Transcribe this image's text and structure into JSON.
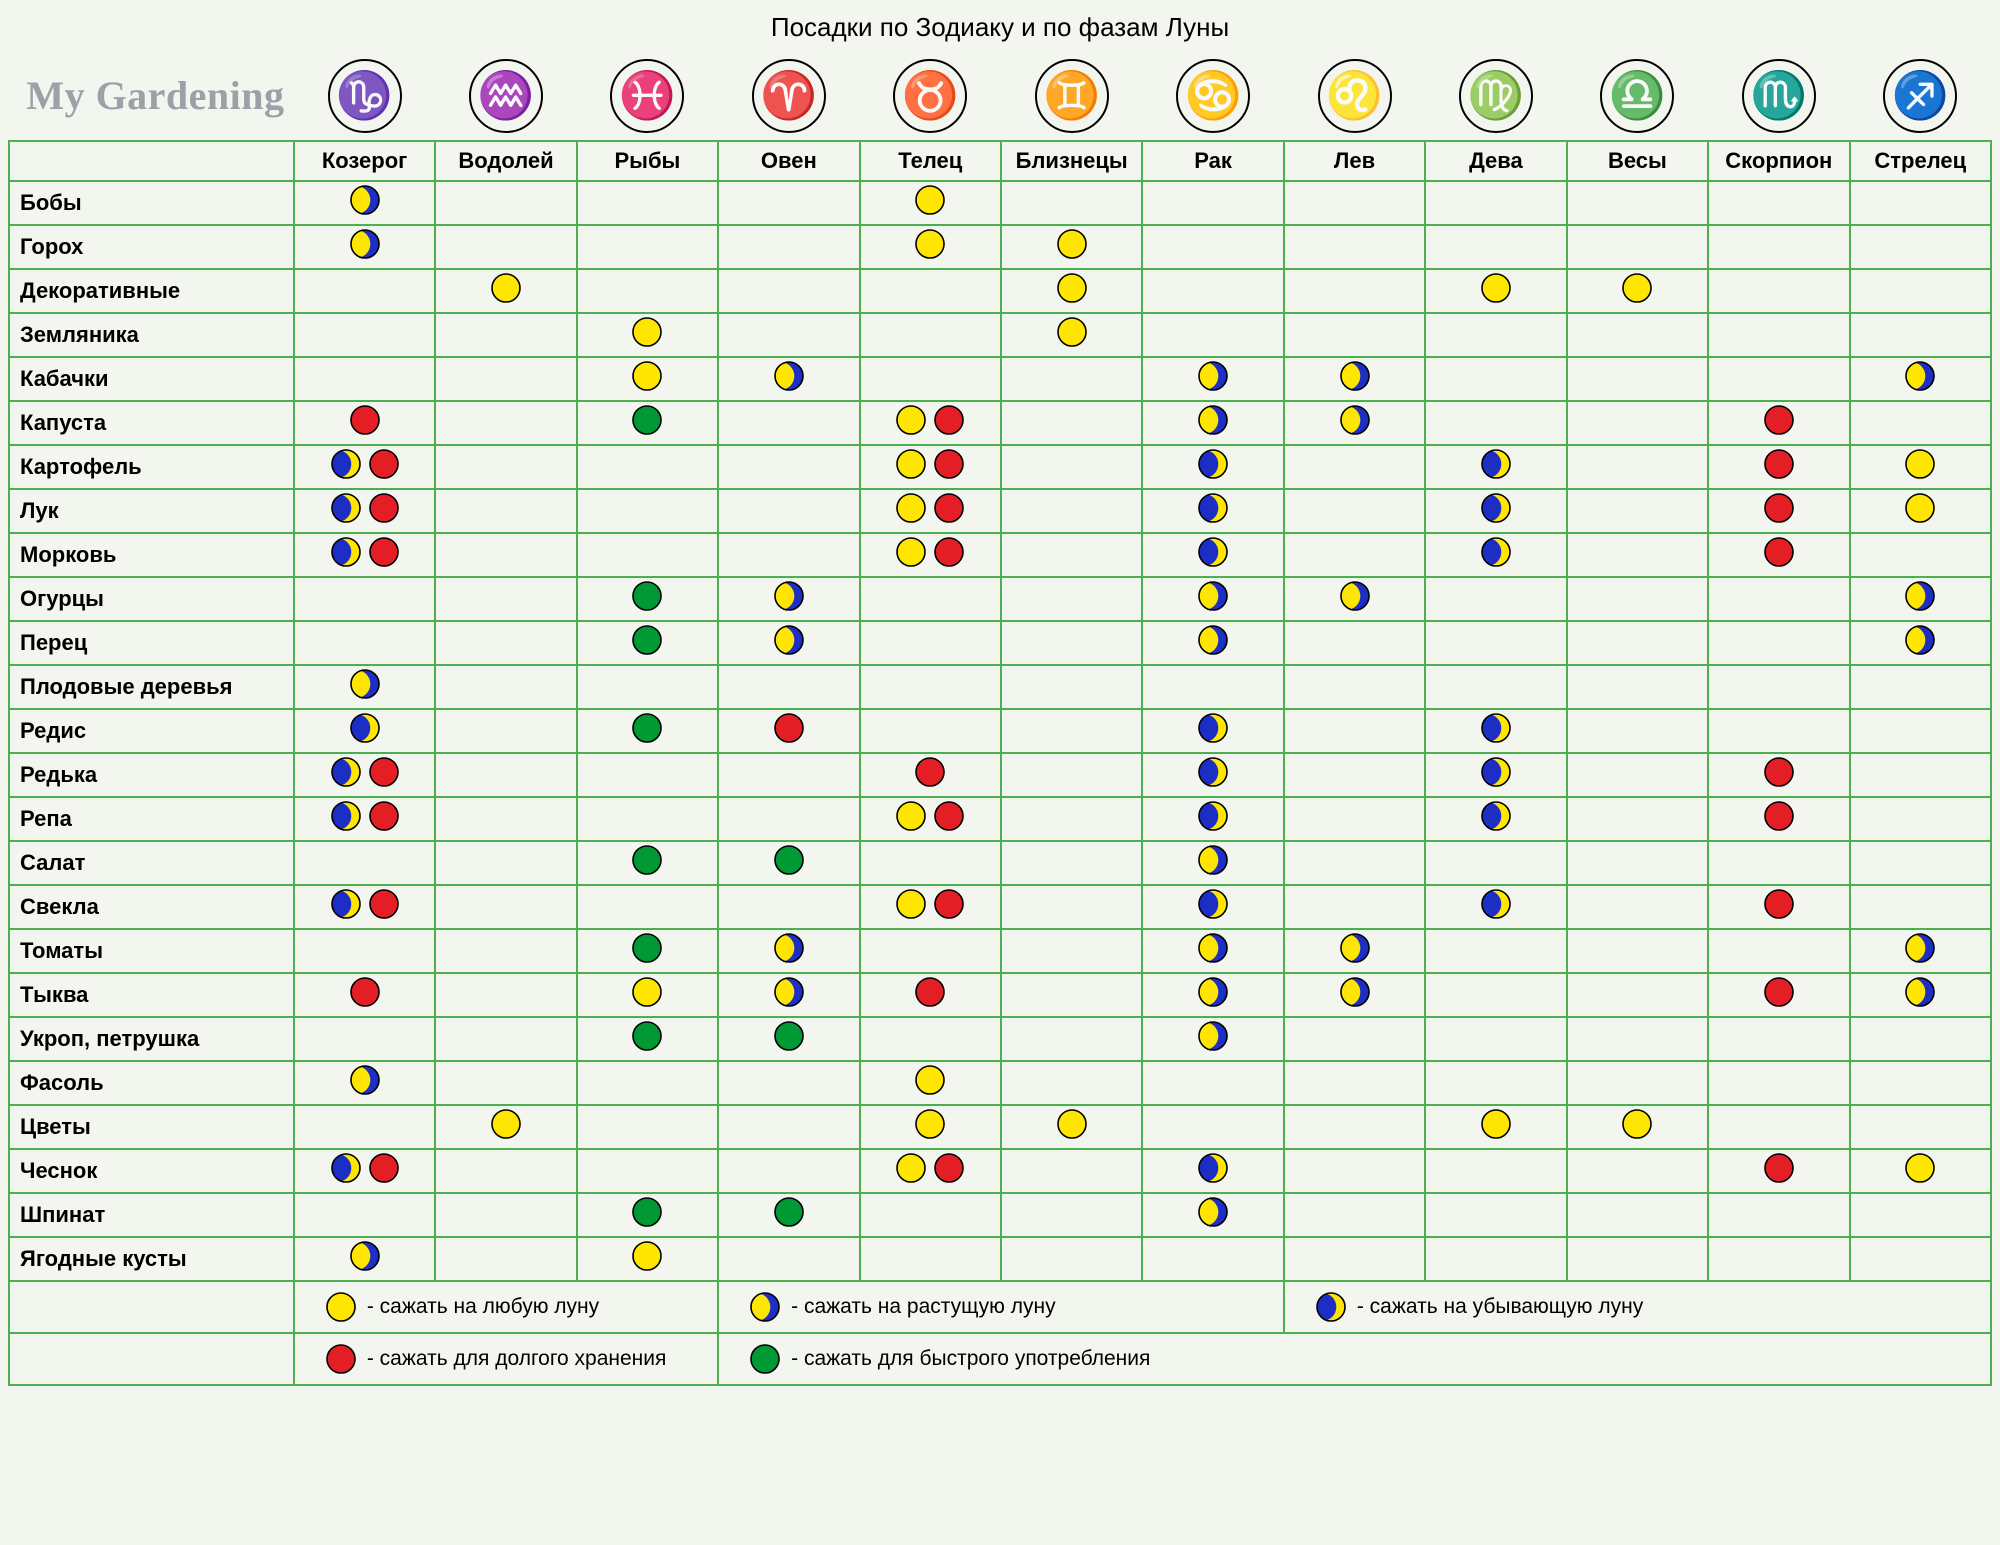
{
  "title": "Посадки по Зодиаку и по фазам Луны",
  "logo": "My Gardening",
  "colors": {
    "yellow": "#ffe600",
    "red": "#e31e24",
    "green": "#009933",
    "blue": "#1d2ec4",
    "stroke": "#000000",
    "border": "#4caf50",
    "bg": "#f2f6ee"
  },
  "dot_radius": 14,
  "zodiac": [
    {
      "key": "capricorn",
      "label": "Козерог",
      "glyph": "♑"
    },
    {
      "key": "aquarius",
      "label": "Водолей",
      "glyph": "♒"
    },
    {
      "key": "pisces",
      "label": "Рыбы",
      "glyph": "♓"
    },
    {
      "key": "aries",
      "label": "Овен",
      "glyph": "♈"
    },
    {
      "key": "taurus",
      "label": "Телец",
      "glyph": "♉"
    },
    {
      "key": "gemini",
      "label": "Близнецы",
      "glyph": "♊"
    },
    {
      "key": "cancer",
      "label": "Рак",
      "glyph": "♋"
    },
    {
      "key": "leo",
      "label": "Лев",
      "glyph": "♌"
    },
    {
      "key": "virgo",
      "label": "Дева",
      "glyph": "♍"
    },
    {
      "key": "libra",
      "label": "Весы",
      "glyph": "♎"
    },
    {
      "key": "scorpio",
      "label": "Скорпион",
      "glyph": "♏"
    },
    {
      "key": "sagittarius",
      "label": "Стрелец",
      "glyph": "♐"
    }
  ],
  "rows": [
    {
      "label": "Бобы",
      "cells": [
        [
          "wax"
        ],
        [],
        [],
        [],
        [
          "y"
        ],
        [],
        [],
        [],
        [],
        [],
        [],
        []
      ]
    },
    {
      "label": "Горох",
      "cells": [
        [
          "wax"
        ],
        [],
        [],
        [],
        [
          "y"
        ],
        [
          "y"
        ],
        [],
        [],
        [],
        [],
        [],
        []
      ]
    },
    {
      "label": "Декоративные",
      "cells": [
        [],
        [
          "y"
        ],
        [],
        [],
        [],
        [
          "y"
        ],
        [],
        [],
        [
          "y"
        ],
        [
          "y"
        ],
        [],
        []
      ]
    },
    {
      "label": "Земляника",
      "cells": [
        [],
        [],
        [
          "y"
        ],
        [],
        [],
        [
          "y"
        ],
        [],
        [],
        [],
        [],
        [],
        []
      ]
    },
    {
      "label": "Кабачки",
      "cells": [
        [],
        [],
        [
          "y"
        ],
        [
          "wax"
        ],
        [],
        [],
        [
          "wax"
        ],
        [
          "wax"
        ],
        [],
        [],
        [],
        [
          "wax"
        ]
      ]
    },
    {
      "label": "Капуста",
      "cells": [
        [
          "r"
        ],
        [],
        [
          "g"
        ],
        [],
        [
          "y",
          "r"
        ],
        [],
        [
          "wax"
        ],
        [
          "wax"
        ],
        [],
        [],
        [
          "r"
        ],
        []
      ]
    },
    {
      "label": "Картофель",
      "cells": [
        [
          "wan",
          "r"
        ],
        [],
        [],
        [],
        [
          "y",
          "r"
        ],
        [],
        [
          "wan"
        ],
        [],
        [
          "wan"
        ],
        [],
        [
          "r"
        ],
        [
          "y"
        ]
      ]
    },
    {
      "label": "Лук",
      "cells": [
        [
          "wan",
          "r"
        ],
        [],
        [],
        [],
        [
          "y",
          "r"
        ],
        [],
        [
          "wan"
        ],
        [],
        [
          "wan"
        ],
        [],
        [
          "r"
        ],
        [
          "y"
        ]
      ]
    },
    {
      "label": "Морковь",
      "cells": [
        [
          "wan",
          "r"
        ],
        [],
        [],
        [],
        [
          "y",
          "r"
        ],
        [],
        [
          "wan"
        ],
        [],
        [
          "wan"
        ],
        [],
        [
          "r"
        ],
        []
      ]
    },
    {
      "label": "Огурцы",
      "cells": [
        [],
        [],
        [
          "g"
        ],
        [
          "wax"
        ],
        [],
        [],
        [
          "wax"
        ],
        [
          "wax"
        ],
        [],
        [],
        [],
        [
          "wax"
        ]
      ]
    },
    {
      "label": "Перец",
      "cells": [
        [],
        [],
        [
          "g"
        ],
        [
          "wax"
        ],
        [],
        [],
        [
          "wax"
        ],
        [],
        [],
        [],
        [],
        [
          "wax"
        ]
      ]
    },
    {
      "label": "Плодовые деревья",
      "cells": [
        [
          "wax"
        ],
        [],
        [],
        [],
        [],
        [],
        [],
        [],
        [],
        [],
        [],
        []
      ]
    },
    {
      "label": "Редис",
      "cells": [
        [
          "wan"
        ],
        [],
        [
          "g"
        ],
        [
          "r"
        ],
        [],
        [],
        [
          "wan"
        ],
        [],
        [
          "wan"
        ],
        [],
        [],
        []
      ]
    },
    {
      "label": "Редька",
      "cells": [
        [
          "wan",
          "r"
        ],
        [],
        [],
        [],
        [
          "r"
        ],
        [],
        [
          "wan"
        ],
        [],
        [
          "wan"
        ],
        [],
        [
          "r"
        ],
        []
      ]
    },
    {
      "label": "Репа",
      "cells": [
        [
          "wan",
          "r"
        ],
        [],
        [],
        [],
        [
          "y",
          "r"
        ],
        [],
        [
          "wan"
        ],
        [],
        [
          "wan"
        ],
        [],
        [
          "r"
        ],
        []
      ]
    },
    {
      "label": "Салат",
      "cells": [
        [],
        [],
        [
          "g"
        ],
        [
          "g"
        ],
        [],
        [],
        [
          "wax"
        ],
        [],
        [],
        [],
        [],
        []
      ]
    },
    {
      "label": "Свекла",
      "cells": [
        [
          "wan",
          "r"
        ],
        [],
        [],
        [],
        [
          "y",
          "r"
        ],
        [],
        [
          "wan"
        ],
        [],
        [
          "wan"
        ],
        [],
        [
          "r"
        ],
        []
      ]
    },
    {
      "label": "Томаты",
      "cells": [
        [],
        [],
        [
          "g"
        ],
        [
          "wax"
        ],
        [],
        [],
        [
          "wax"
        ],
        [
          "wax"
        ],
        [],
        [],
        [],
        [
          "wax"
        ]
      ]
    },
    {
      "label": "Тыква",
      "cells": [
        [
          "r"
        ],
        [],
        [
          "y"
        ],
        [
          "wax"
        ],
        [
          "r"
        ],
        [],
        [
          "wax"
        ],
        [
          "wax"
        ],
        [],
        [],
        [
          "r"
        ],
        [
          "wax"
        ]
      ]
    },
    {
      "label": "Укроп, петрушка",
      "cells": [
        [],
        [],
        [
          "g"
        ],
        [
          "g"
        ],
        [],
        [],
        [
          "wax"
        ],
        [],
        [],
        [],
        [],
        []
      ]
    },
    {
      "label": "Фасоль",
      "cells": [
        [
          "wax"
        ],
        [],
        [],
        [],
        [
          "y"
        ],
        [],
        [],
        [],
        [],
        [],
        [],
        []
      ]
    },
    {
      "label": "Цветы",
      "cells": [
        [],
        [
          "y"
        ],
        [],
        [],
        [
          "y"
        ],
        [
          "y"
        ],
        [],
        [],
        [
          "y"
        ],
        [
          "y"
        ],
        [],
        []
      ]
    },
    {
      "label": "Чеснок",
      "cells": [
        [
          "wan",
          "r"
        ],
        [],
        [],
        [],
        [
          "y",
          "r"
        ],
        [],
        [
          "wan"
        ],
        [],
        [],
        [],
        [
          "r"
        ],
        [
          "y"
        ]
      ]
    },
    {
      "label": "Шпинат",
      "cells": [
        [],
        [],
        [
          "g"
        ],
        [
          "g"
        ],
        [],
        [],
        [
          "wax"
        ],
        [],
        [],
        [],
        [],
        []
      ]
    },
    {
      "label": "Ягодные кусты",
      "cells": [
        [
          "wax"
        ],
        [],
        [
          "y"
        ],
        [],
        [],
        [],
        [],
        [],
        [],
        [],
        [],
        []
      ]
    }
  ],
  "legend": {
    "row1": [
      {
        "dot": "y",
        "text": "- сажать на любую луну"
      },
      {
        "dot": "wax",
        "text": "- сажать на растущую луну"
      },
      {
        "dot": "wan",
        "text": "- сажать на убывающую луну"
      }
    ],
    "row2": [
      {
        "dot": "r",
        "text": "- сажать для долгого хранения"
      },
      {
        "dot": "g",
        "text": "- сажать для быстрого употребления"
      }
    ]
  }
}
